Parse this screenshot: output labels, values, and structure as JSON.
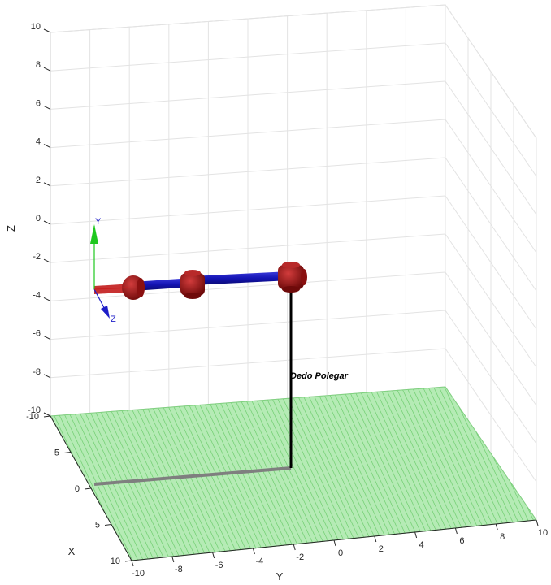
{
  "axes": {
    "x_label": "X",
    "y_label": "Y",
    "z_label": "Z",
    "z_ticks": [
      "10",
      "8",
      "6",
      "4",
      "2",
      "0",
      "-2",
      "-4",
      "-6",
      "-8",
      "-10"
    ],
    "x_ticks": [
      "-10",
      "-5",
      "0",
      "5",
      "10"
    ],
    "y_ticks": [
      "-10",
      "-8",
      "-6",
      "-4",
      "-2",
      "0",
      "2",
      "4",
      "6",
      "8",
      "10"
    ],
    "grid": true
  },
  "robot": {
    "name": "Dedo Polegar",
    "base_frame": {
      "y_label": "Y",
      "z_label": "Z"
    },
    "joint_count": 3
  },
  "colors": {
    "floor": "#9de49d",
    "floor_hatch": "#5fc55f",
    "link": "#1414b4",
    "joint": "#a01414",
    "pole": "#000000",
    "shadow": "#7f7f7f",
    "frame_y": "#1ec81e",
    "frame_z": "#1e1ec8",
    "frame_x": "#c81e1e",
    "grid": "#e6e6e6"
  }
}
